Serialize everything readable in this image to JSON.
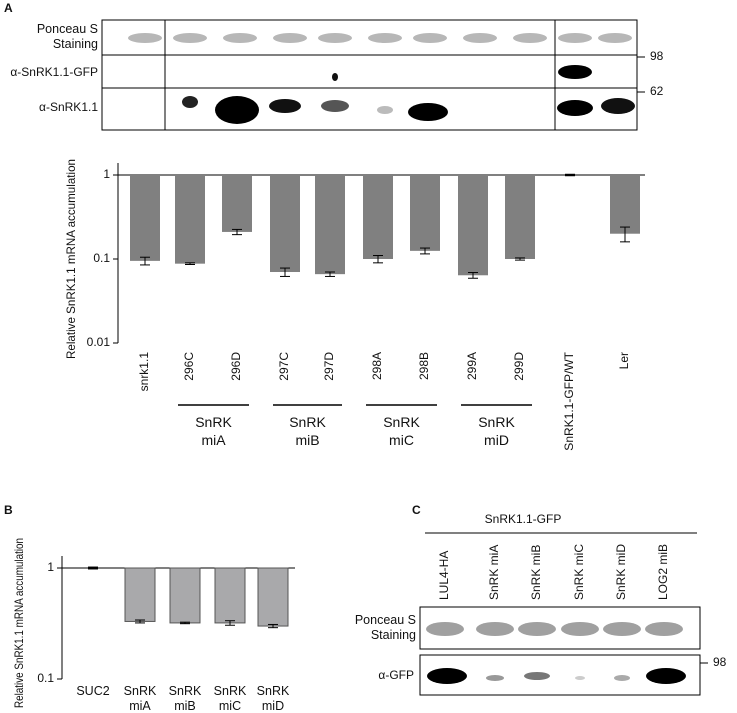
{
  "panel_labels": [
    "A",
    "B",
    "C"
  ],
  "blot_a": {
    "row_labels": [
      "Ponceau S Staining",
      "α-SnRK1.1-GFP",
      "α-SnRK1.1"
    ],
    "size_markers": [
      "98",
      "62"
    ]
  },
  "chart_data": [
    {
      "type": "bar",
      "y_label": "Relative SnRK1.1 mRNA accumulation",
      "log_scale": true,
      "color": "#808080",
      "categories": [
        "snrk1.1",
        "296C",
        "296D",
        "297C",
        "297D",
        "298A",
        "298B",
        "299A",
        "299D",
        "SnRK1.1-GFP/WT",
        "Ler"
      ],
      "values": [
        0.095,
        0.088,
        0.21,
        0.07,
        0.066,
        0.1,
        0.125,
        0.064,
        0.1,
        1,
        0.2
      ],
      "errors": [
        0.01,
        0.002,
        0.015,
        0.008,
        0.004,
        0.01,
        0.01,
        0.005,
        0.003,
        0.02,
        0.04
      ],
      "groups": [
        "SnRK miA",
        "SnRK miB",
        "SnRK miC",
        "SnRK miD"
      ],
      "ylim": [
        0.01,
        1
      ],
      "yticks": [
        0.01,
        0.1,
        1
      ]
    },
    {
      "type": "bar",
      "y_label": "Relative SnRK1.1 mRNA accumulation",
      "log_scale": true,
      "color": "#a9a9ab",
      "categories": [
        "SUC2",
        "SnRK miA",
        "SnRK miB",
        "SnRK miC",
        "SnRK miD"
      ],
      "values": [
        1,
        0.33,
        0.32,
        0.32,
        0.3
      ],
      "errors": [
        0.02,
        0.01,
        0.005,
        0.015,
        0.01
      ],
      "ylim": [
        0.1,
        1
      ],
      "yticks": [
        0.1,
        1
      ]
    }
  ],
  "blot_c": {
    "title": "SnRK1.1-GFP",
    "lanes": [
      "LUL4-HA",
      "SnRK miA",
      "SnRK miB",
      "SnRK miC",
      "SnRK miD",
      "LOG2 miB"
    ],
    "row_labels": [
      "Ponceau S Staining",
      "α-GFP"
    ],
    "size_markers": [
      "98"
    ]
  }
}
